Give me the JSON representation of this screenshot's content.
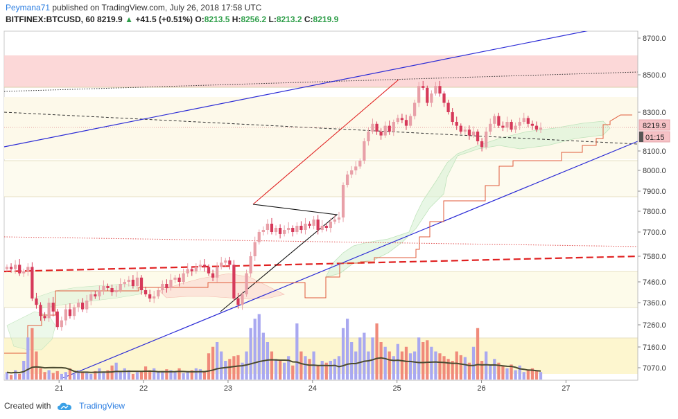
{
  "header": {
    "user": "Peymana71",
    "published_text": " published on TradingView.com, July 26, 2018 17:58 UTC",
    "symbol": "BITFINEX:BTCUSD, 60",
    "last": "8219.9",
    "change_arrow": "▲",
    "change": "+41.5 (+0.51%)",
    "o_label": "O:",
    "o_value": "8213.5",
    "h_label": "H:",
    "h_value": "8256.2",
    "l_label": "L:",
    "l_value": "8213.2",
    "c_label": "C:",
    "c_value": "8219.9"
  },
  "price_badge": "8219.9",
  "countdown_badge": "01:15",
  "footer": {
    "created_with": "Created with",
    "brand": "TradingView"
  },
  "colors": {
    "up": "#e8a0a8",
    "down": "#d6395a",
    "vol_up": "#a9a8f0",
    "vol_down": "#f08a7a",
    "trend": "#2b2bd6",
    "wedge_red": "#e02020",
    "resistance_zone": "#f9c6c6",
    "support_zone": "#fdf4c9"
  },
  "chart_data": {
    "type": "candlestick",
    "y_ticks": [
      8700.0,
      8500.0,
      8300.0,
      8100.0,
      8000.0,
      7900.0,
      7800.0,
      7700.0,
      7580.0,
      7460.0,
      7360.0,
      7260.0,
      7160.0,
      7070.0
    ],
    "x_ticks": [
      {
        "label": "21",
        "x": 20.83
      },
      {
        "label": "22",
        "x": 21.83
      },
      {
        "label": "23",
        "x": 22.83
      },
      {
        "label": "24",
        "x": 23.83
      },
      {
        "label": "25",
        "x": 24.83
      },
      {
        "label": "26",
        "x": 25.83
      },
      {
        "label": "27",
        "x": 26.83
      }
    ],
    "x_range": [
      20.18,
      27.68
    ],
    "y_range": [
      7030,
      8740
    ],
    "ohlc_close": [
      7530,
      7520,
      7540,
      7500,
      7510,
      7530,
      7380,
      7350,
      7300,
      7290,
      7360,
      7320,
      7250,
      7280,
      7330,
      7300,
      7340,
      7360,
      7330,
      7370,
      7400,
      7390,
      7420,
      7440,
      7430,
      7410,
      7420,
      7450,
      7460,
      7470,
      7440,
      7480,
      7420,
      7400,
      7380,
      7390,
      7420,
      7450,
      7430,
      7470,
      7480,
      7460,
      7500,
      7520,
      7510,
      7530,
      7540,
      7530,
      7500,
      7480,
      7530,
      7550,
      7560,
      7540,
      7380,
      7350,
      7400,
      7500,
      7580,
      7650,
      7700,
      7710,
      7740,
      7700,
      7720,
      7690,
      7710,
      7720,
      7700,
      7730,
      7710,
      7740,
      7730,
      7760,
      7710,
      7730,
      7720,
      7750,
      7760,
      7770,
      7930,
      7980,
      8000,
      8020,
      8050,
      8150,
      8200,
      8240,
      8200,
      8180,
      8230,
      8200,
      8250,
      8270,
      8260,
      8230,
      8280,
      8350,
      8440,
      8430,
      8350,
      8400,
      8440,
      8400,
      8350,
      8300,
      8250,
      8230,
      8200,
      8210,
      8180,
      8200,
      8150,
      8120,
      8200,
      8240,
      8280,
      8230,
      8220,
      8250,
      8210,
      8230,
      8250,
      8270,
      8240,
      8230,
      8210,
      8220
    ],
    "volume": [
      8,
      5,
      10,
      6,
      20,
      45,
      55,
      30,
      12,
      8,
      10,
      7,
      9,
      6,
      8,
      12,
      6,
      10,
      8,
      7,
      6,
      9,
      12,
      8,
      10,
      15,
      18,
      8,
      12,
      10,
      6,
      8,
      9,
      14,
      10,
      12,
      8,
      9,
      11,
      10,
      8,
      12,
      7,
      9,
      10,
      12,
      11,
      8,
      28,
      35,
      40,
      30,
      20,
      22,
      25,
      26,
      18,
      30,
      55,
      65,
      70,
      50,
      40,
      30,
      22,
      20,
      18,
      25,
      15,
      60,
      30,
      25,
      22,
      30,
      15,
      20,
      18,
      20,
      22,
      25,
      55,
      65,
      40,
      30,
      45,
      50,
      30,
      45,
      60,
      40,
      35,
      30,
      25,
      38,
      30,
      35,
      28,
      30,
      45,
      40,
      42,
      35,
      30,
      28,
      25,
      22,
      20,
      30,
      26,
      24,
      18,
      35,
      55,
      20,
      30,
      15,
      22,
      18,
      14,
      12,
      16,
      10,
      15,
      8,
      10,
      12,
      9,
      8
    ],
    "indicator_lines": [
      "Ichimoku cloud",
      "Volume MA",
      "Trend channel",
      "Horizontal support/resistance levels"
    ]
  }
}
